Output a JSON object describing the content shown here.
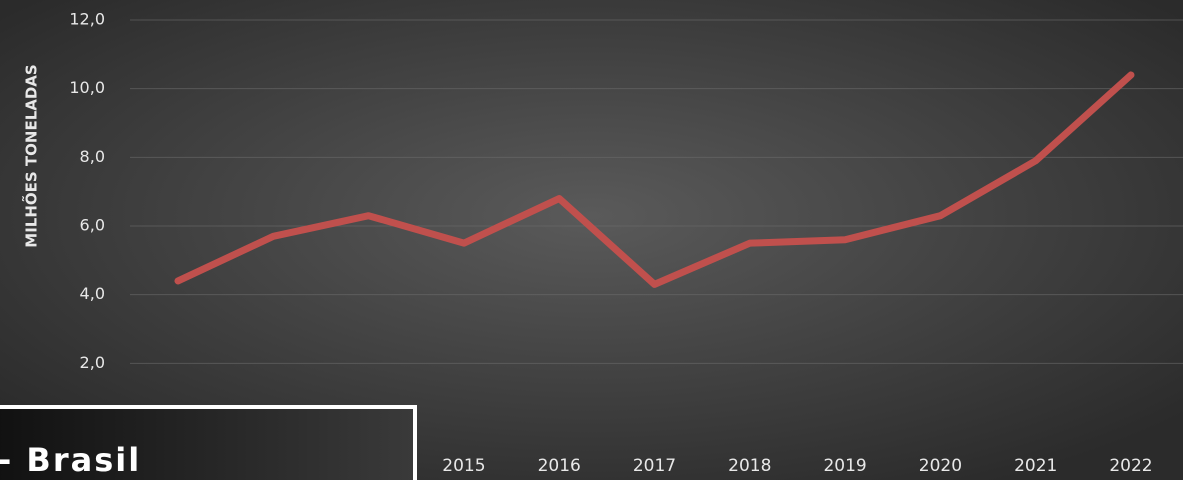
{
  "chart_data": {
    "type": "line",
    "y_label": "MILHÕES TONELADAS",
    "annotations": [
      "- Brasil"
    ],
    "categories": [
      null,
      null,
      null,
      "2015",
      "2016",
      "2017",
      "2018",
      "2019",
      "2020",
      "2021",
      "2022"
    ],
    "series": [
      {
        "name": "Brasil",
        "color": "#c0504d",
        "values": [
          4.4,
          5.7,
          6.3,
          5.5,
          6.8,
          4.3,
          5.5,
          5.6,
          6.3,
          7.9,
          10.4
        ]
      }
    ],
    "ylim": [
      0,
      12
    ],
    "yticks": [
      {
        "value": 2,
        "label": "2,0"
      },
      {
        "value": 4,
        "label": "4,0"
      },
      {
        "value": 6,
        "label": "6,0"
      },
      {
        "value": 8,
        "label": "8,0"
      },
      {
        "value": 10,
        "label": "10,0"
      },
      {
        "value": 12,
        "label": "12,0"
      }
    ],
    "grid": true
  }
}
